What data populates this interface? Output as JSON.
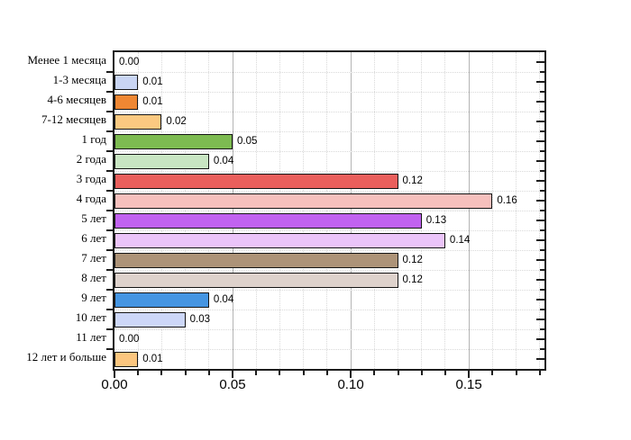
{
  "chart_data": {
    "type": "bar",
    "orientation": "horizontal",
    "title": "",
    "xlabel": "",
    "ylabel": "",
    "grid": true,
    "categories": [
      "Менее 1 месяца",
      "1-3 месяца",
      "4-6 месяцев",
      "7-12 месяцев",
      "1 год",
      "2 года",
      "3 года",
      "4 года",
      "5 лет",
      "6 лет",
      "7 лет",
      "8 лет",
      "9 лет",
      "10 лет",
      "11 лет",
      "12 лет и больше"
    ],
    "values": [
      0.0,
      0.01,
      0.01,
      0.02,
      0.05,
      0.04,
      0.12,
      0.16,
      0.13,
      0.14,
      0.12,
      0.12,
      0.04,
      0.03,
      0.0,
      0.01
    ],
    "value_labels": [
      "0.00",
      "0.01",
      "0.01",
      "0.02",
      "0.05",
      "0.04",
      "0.12",
      "0.16",
      "0.13",
      "0.14",
      "0.12",
      "0.12",
      "0.04",
      "0.03",
      "0.00",
      "0.01"
    ],
    "bar_colors": [
      null,
      "#c9d5f4",
      "#ef8733",
      "#fbc981",
      "#7dbb51",
      "#c8e5c2",
      "#ea5f5c",
      "#f6c0bd",
      "#c162f0",
      "#ebc4f9",
      "#ad9378",
      "#ded2cc",
      "#4595e2",
      "#cdd7f8",
      null,
      "#fbc67f"
    ],
    "xlim": [
      0,
      0.182
    ],
    "x_major_ticks": [
      0.0,
      0.05,
      0.1,
      0.15
    ],
    "x_tick_labels": [
      "0.00",
      "0.05",
      "0.10",
      "0.15"
    ],
    "x_minor_step": 0.01,
    "legend": null
  },
  "style_colors": {
    "frame": "#1c1c1c",
    "major_grid": "#b4b4b4",
    "minor_grid": "#d9d9d9",
    "bar_border": "#141414",
    "background": "#ffffff"
  }
}
